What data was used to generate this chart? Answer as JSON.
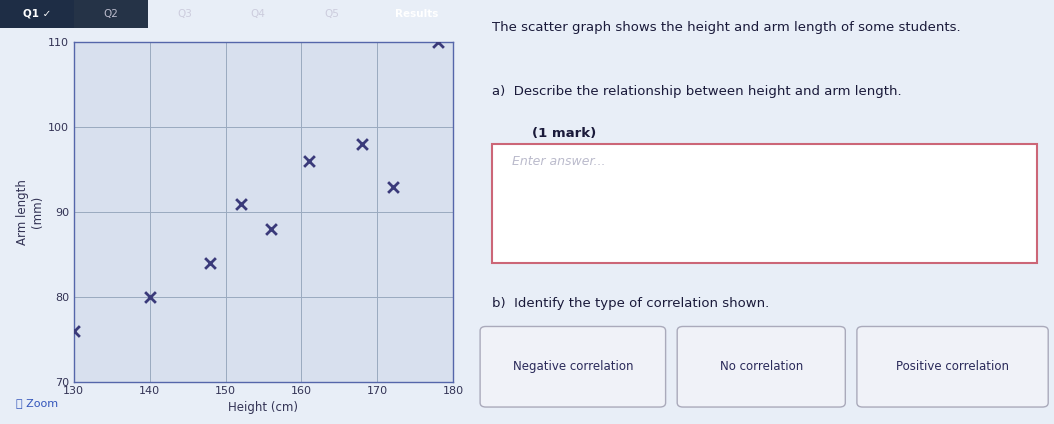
{
  "scatter_x": [
    130,
    140,
    148,
    152,
    156,
    161,
    168,
    172,
    178
  ],
  "scatter_y": [
    76,
    80,
    84,
    91,
    88,
    96,
    98,
    93,
    110
  ],
  "xlim": [
    130,
    180
  ],
  "ylim": [
    70,
    110
  ],
  "xticks": [
    130,
    140,
    150,
    160,
    170,
    180
  ],
  "yticks": [
    70,
    80,
    90,
    100,
    110
  ],
  "xlabel": "Height (cm)",
  "ylabel": "Arm length\n(mm)",
  "marker_color": "#3a3a7a",
  "marker_size": 60,
  "plot_bg_color": "#d8e0ee",
  "fig_bg_color": "#e8eef7",
  "grid_color": "#9aaabf",
  "title_text": "The scatter graph shows the height and arm length of some students.",
  "question_a": "a)  Describe the relationship between height and arm length.",
  "mark_text": "(1 mark)",
  "placeholder_text": "Enter answer...",
  "question_b": "b)  Identify the type of correlation shown.",
  "button_labels": [
    "Negative correlation",
    "No correlation",
    "Positive correlation"
  ],
  "tab_labels": [
    "Q1",
    "Q2",
    "Q3",
    "Q4",
    "Q5",
    "Results"
  ],
  "zoom_text": "Zoom",
  "nav_bg": "#2a3550",
  "nav_active_bg": "#1a2030",
  "nav_text_color": "#ccccdd",
  "nav_active_text": "#ffffff"
}
